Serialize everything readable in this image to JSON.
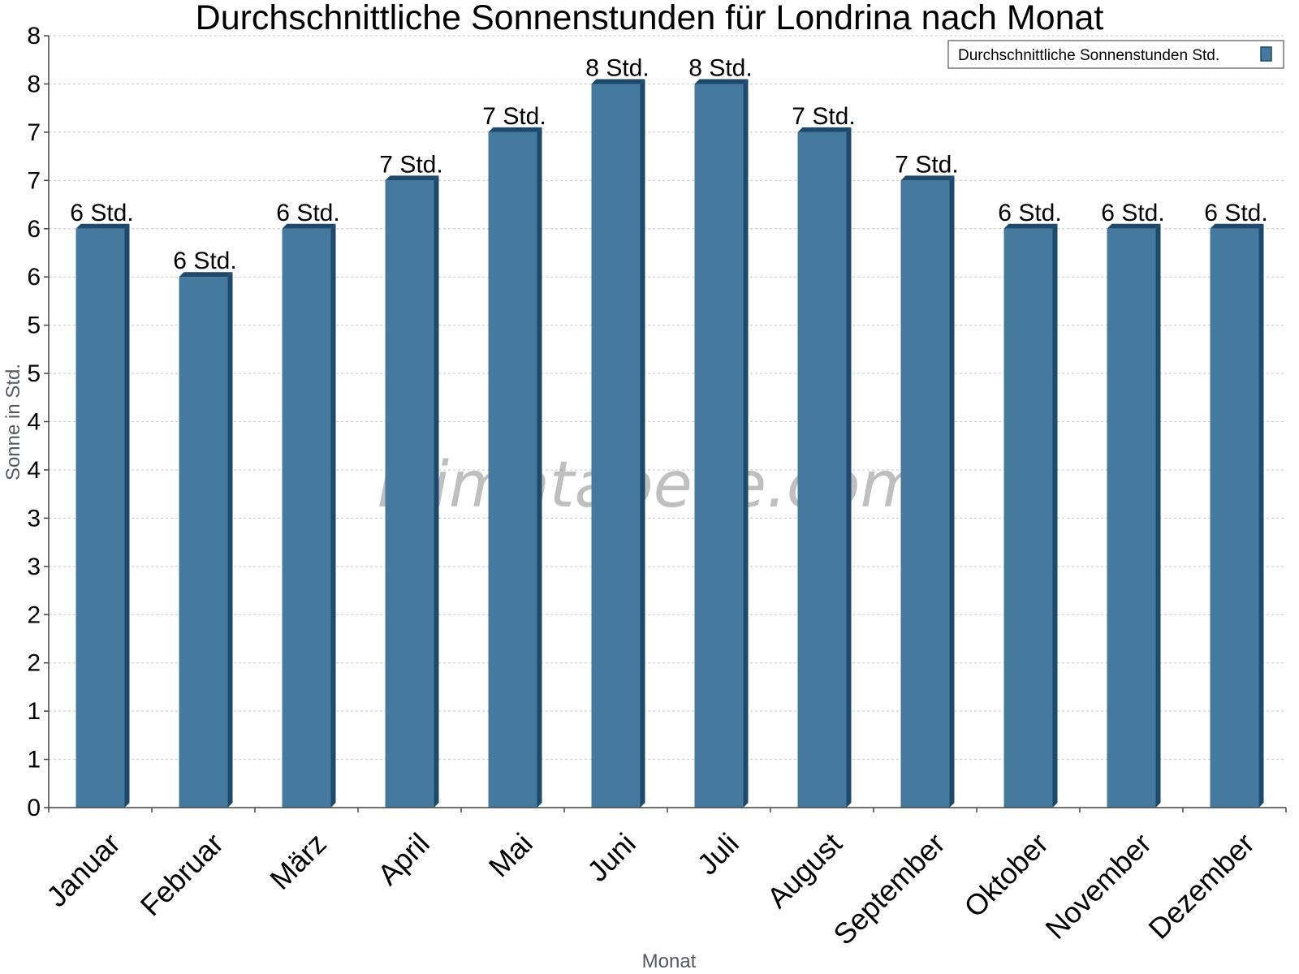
{
  "chart_data": {
    "type": "bar",
    "title": "Durchschnittliche Sonnenstunden für Londrina nach Monat",
    "xlabel": "Monat",
    "ylabel": "Sonne in Std.",
    "categories": [
      "Januar",
      "Februar",
      "März",
      "April",
      "Mai",
      "Juni",
      "Juli",
      "August",
      "September",
      "Oktober",
      "November",
      "Dezember"
    ],
    "series": [
      {
        "name": "Durchschnittliche Sonnenstunden Std.",
        "values": [
          6.0,
          5.5,
          6.0,
          6.5,
          7.0,
          7.5,
          7.5,
          7.0,
          6.5,
          6.0,
          6.0,
          6.0
        ],
        "labels": [
          "6 Std.",
          "6 Std.",
          "6 Std.",
          "7 Std.",
          "7 Std.",
          "8 Std.",
          "8 Std.",
          "7 Std.",
          "7 Std.",
          "6 Std.",
          "6 Std.",
          "6 Std."
        ]
      }
    ],
    "ylim": [
      0,
      8
    ],
    "yticks": [
      0,
      0.5,
      1,
      1.5,
      2,
      2.5,
      3,
      3.5,
      4,
      4.5,
      5,
      5.5,
      6,
      6.5,
      7,
      7.5,
      8
    ],
    "ytick_labels": [
      "0",
      "1",
      "1",
      "2",
      "2",
      "3",
      "3",
      "4",
      "4",
      "5",
      "5",
      "6",
      "6",
      "7",
      "7",
      "8",
      "8"
    ],
    "grid": true,
    "legend_position": "top-right",
    "colors": {
      "bar": "#457a9e",
      "bar_side": "#1d4a6c",
      "bar_top": "#1d4a6c"
    }
  },
  "watermark": "klimatabelle.com"
}
